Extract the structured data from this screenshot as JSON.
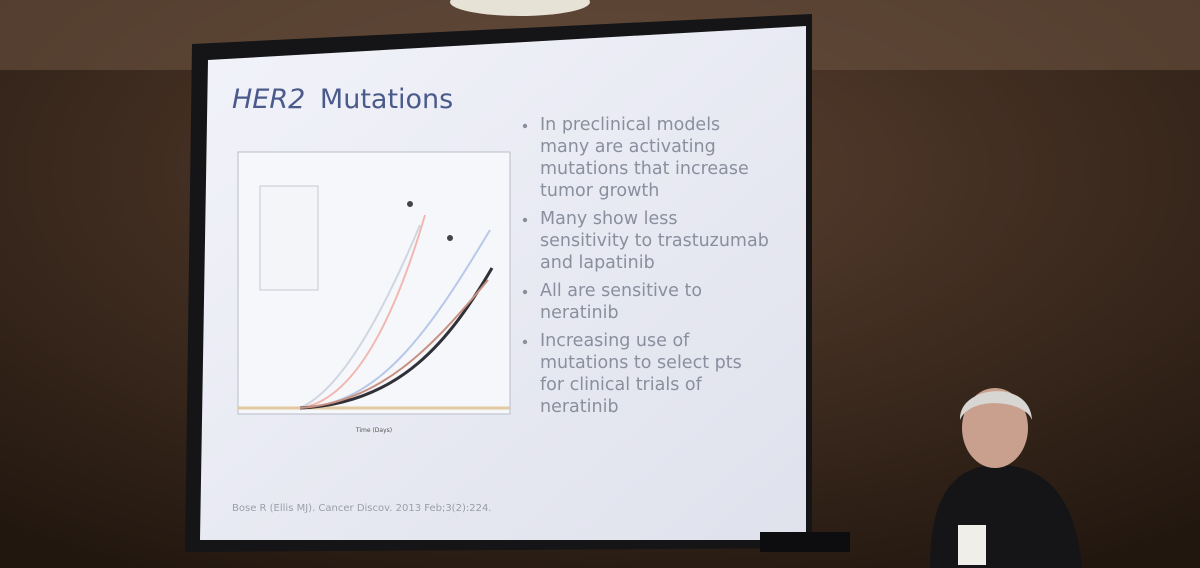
{
  "slide": {
    "title": {
      "emphasis": "HER2",
      "rest": "Mutations"
    },
    "bullets": [
      {
        "lines": [
          "In preclinical models",
          "many are activating",
          "mutations that increase",
          "tumor growth"
        ]
      },
      {
        "lines": [
          "Many show less",
          "sensitivity to trastuzumab",
          "and lapatinib"
        ]
      },
      {
        "lines": [
          "All are sensitive to",
          "neratinib"
        ]
      },
      {
        "lines": [
          "Increasing use of",
          "mutations to select pts",
          "for clinical trials of",
          "neratinib"
        ]
      }
    ],
    "figure": {
      "x_label": "Time (Days)"
    },
    "citation": "Bose R (Ellis MJ). Cancer Discov. 2013 Feb;3(2):224."
  }
}
